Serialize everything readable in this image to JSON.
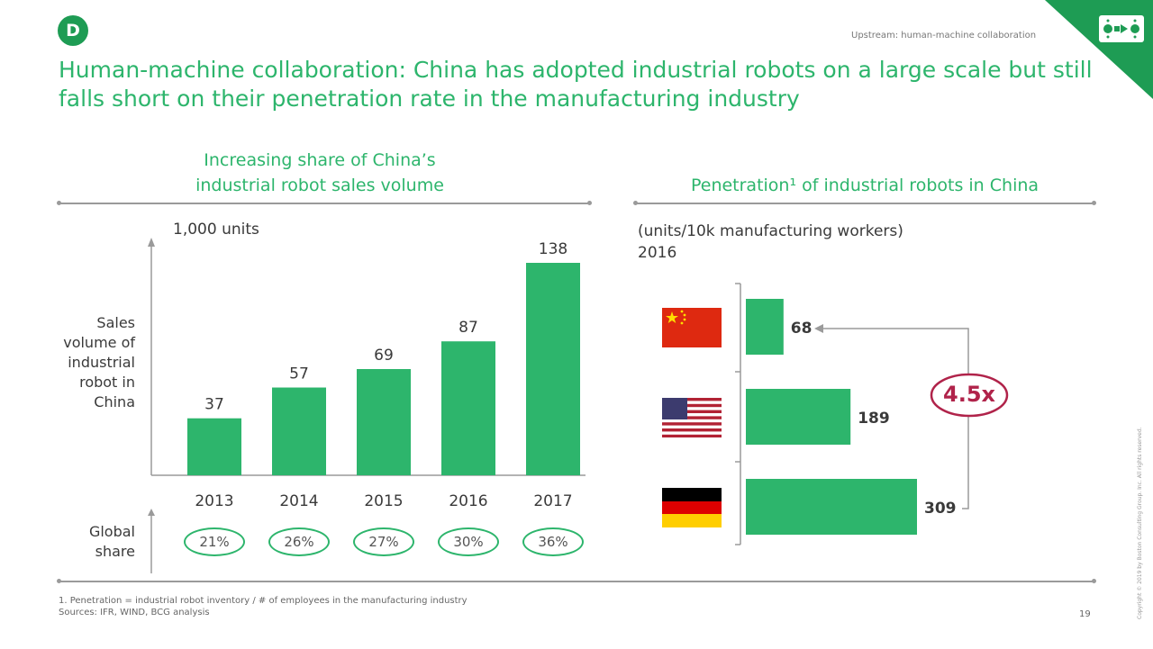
{
  "header": {
    "badge": "D",
    "kicker": "Upstream: human-machine collaboration",
    "title": "Human-machine collaboration: China has adopted industrial robots on a large scale but still falls short on their penetration rate in the manufacturing industry"
  },
  "left_panel": {
    "subtitle_line1": "Increasing share of China’s",
    "subtitle_line2": "industrial robot sales volume",
    "unit": "1,000 units",
    "row_label_lines": [
      "Sales",
      "volume of",
      "industrial",
      "robot in",
      "China"
    ],
    "share_label_lines": [
      "Global",
      "share"
    ]
  },
  "right_panel": {
    "subtitle": "Penetration¹ of industrial robots in China",
    "unit_line1": "(units/10k manufacturing workers)",
    "unit_line2": "2016",
    "multiplier": "4.5x"
  },
  "chart_data": [
    {
      "type": "bar",
      "title": "Increasing share of China’s industrial robot sales volume",
      "ylabel": "Sales volume of industrial robot in China",
      "unit": "1,000 units",
      "categories": [
        "2013",
        "2014",
        "2015",
        "2016",
        "2017"
      ],
      "values": [
        37,
        57,
        69,
        87,
        138
      ],
      "value_labels": [
        "37",
        "57",
        "69",
        "87",
        "138"
      ],
      "global_share": [
        "21%",
        "26%",
        "27%",
        "30%",
        "36%"
      ],
      "ylim": [
        0,
        138
      ],
      "color": "#2db56c"
    },
    {
      "type": "bar",
      "orientation": "horizontal",
      "title": "Penetration¹ of industrial robots in China",
      "unit": "(units/10k manufacturing workers)",
      "year": "2016",
      "categories": [
        "China",
        "USA",
        "Germany"
      ],
      "values": [
        68,
        189,
        309
      ],
      "value_labels": [
        "68",
        "189",
        "309"
      ],
      "color": "#2db56c"
    }
  ],
  "footer": {
    "note": "1. Penetration = industrial robot inventory / # of employees in the manufacturing industry",
    "sources": "Sources: IFR, WIND, BCG analysis",
    "page": "19",
    "copyright": "Copyright © 2019 by Boston Consulting Group. Inc. All rights reserved."
  },
  "colors": {
    "accent": "#2db56c",
    "brand_dark": "#1e9c54",
    "highlight": "#b0234a"
  },
  "icons": [
    "robot-logo-icon",
    "china-flag-icon",
    "usa-flag-icon",
    "germany-flag-icon"
  ]
}
